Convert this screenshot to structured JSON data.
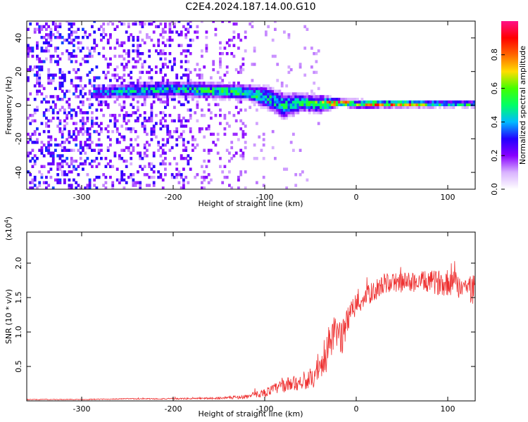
{
  "title": "C2E4.2024.187.14.00.G10",
  "chart_data": [
    {
      "type": "heatmap",
      "title": "C2E4.2024.187.14.00.G10",
      "xlabel": "Height of straight line (km)",
      "ylabel": "Frequency (Hz)",
      "xlim": [
        -360,
        130
      ],
      "ylim": [
        -50,
        50
      ],
      "xticks": [
        -300,
        -200,
        -100,
        0,
        100
      ],
      "xtick_labels": [
        "-300",
        "-200",
        "-100",
        "0",
        "100"
      ],
      "yticks": [
        -40,
        -20,
        0,
        20,
        40
      ],
      "ytick_labels": [
        "-40",
        "-20",
        "0",
        "20",
        "40"
      ],
      "colorbar": {
        "label": "Normalized spectral amplitude",
        "range": [
          0,
          1
        ],
        "ticks": [
          0.0,
          0.2,
          0.4,
          0.6,
          0.8
        ],
        "tick_labels": [
          "0.0",
          "0.2",
          "0.4",
          "0.6",
          "0.8"
        ],
        "colors": [
          "#ffffff",
          "#d9b3ff",
          "#8800ff",
          "#2200ff",
          "#00bbff",
          "#00ff66",
          "#44ff00",
          "#ffdd00",
          "#ff6600",
          "#ff0000",
          "#ff1188"
        ]
      },
      "ridge": [
        {
          "x": -280,
          "center": 7,
          "width": 3,
          "amp": 0.4
        },
        {
          "x": -240,
          "center": 8,
          "width": 3.5,
          "amp": 0.45
        },
        {
          "x": -200,
          "center": 9,
          "width": 3.5,
          "amp": 0.5
        },
        {
          "x": -160,
          "center": 8,
          "width": 3.5,
          "amp": 0.55
        },
        {
          "x": -120,
          "center": 7,
          "width": 3.5,
          "amp": 0.55
        },
        {
          "x": -100,
          "center": 4,
          "width": 5,
          "amp": 0.5
        },
        {
          "x": -80,
          "center": -1,
          "width": 6,
          "amp": 0.5
        },
        {
          "x": -60,
          "center": 1,
          "width": 4,
          "amp": 0.55
        },
        {
          "x": -40,
          "center": 0,
          "width": 4,
          "amp": 0.6
        },
        {
          "x": -20,
          "center": 1,
          "width": 1.5,
          "amp": 0.95
        },
        {
          "x": 0,
          "center": 0,
          "width": 2,
          "amp": 0.6
        },
        {
          "x": 20,
          "center": 0,
          "width": 1.5,
          "amp": 0.9
        },
        {
          "x": 60,
          "center": 0,
          "width": 1.5,
          "amp": 0.75
        },
        {
          "x": 100,
          "center": 0,
          "width": 1.5,
          "amp": 0.55
        },
        {
          "x": 130,
          "center": 0,
          "width": 1.5,
          "amp": 0.55
        }
      ]
    },
    {
      "type": "line",
      "xlabel": "Height of straight line (km)",
      "ylabel": "SNR (10 * v/v)",
      "multiplier_label": "(x10",
      "multiplier_exp": "4",
      "xlim": [
        -360,
        130
      ],
      "ylim": [
        0,
        2.45
      ],
      "xticks": [
        -300,
        -200,
        -100,
        0,
        100
      ],
      "xtick_labels": [
        "-300",
        "-200",
        "-100",
        "0",
        "100"
      ],
      "yticks": [
        0.5,
        1.0,
        1.5,
        2.0
      ],
      "ytick_labels": [
        "0.5",
        "1.0",
        "1.5",
        "2.0"
      ],
      "series": [
        {
          "name": "SNR",
          "color": "#ee3030",
          "x": [
            -360,
            -300,
            -250,
            -200,
            -150,
            -120,
            -100,
            -80,
            -60,
            -45,
            -35,
            -28,
            -20,
            -15,
            -10,
            0,
            10,
            20,
            30,
            50,
            70,
            90,
            110,
            130
          ],
          "y": [
            0.02,
            0.02,
            0.03,
            0.03,
            0.04,
            0.06,
            0.12,
            0.22,
            0.28,
            0.32,
            0.55,
            0.9,
            1.0,
            0.9,
            1.2,
            1.4,
            1.5,
            1.6,
            1.7,
            1.72,
            1.73,
            1.72,
            1.7,
            1.6
          ],
          "noise": [
            0.005,
            0.005,
            0.008,
            0.01,
            0.015,
            0.03,
            0.06,
            0.1,
            0.12,
            0.13,
            0.25,
            0.3,
            0.25,
            0.25,
            0.2,
            0.18,
            0.15,
            0.15,
            0.15,
            0.15,
            0.15,
            0.18,
            0.2,
            0.25
          ]
        }
      ]
    }
  ]
}
